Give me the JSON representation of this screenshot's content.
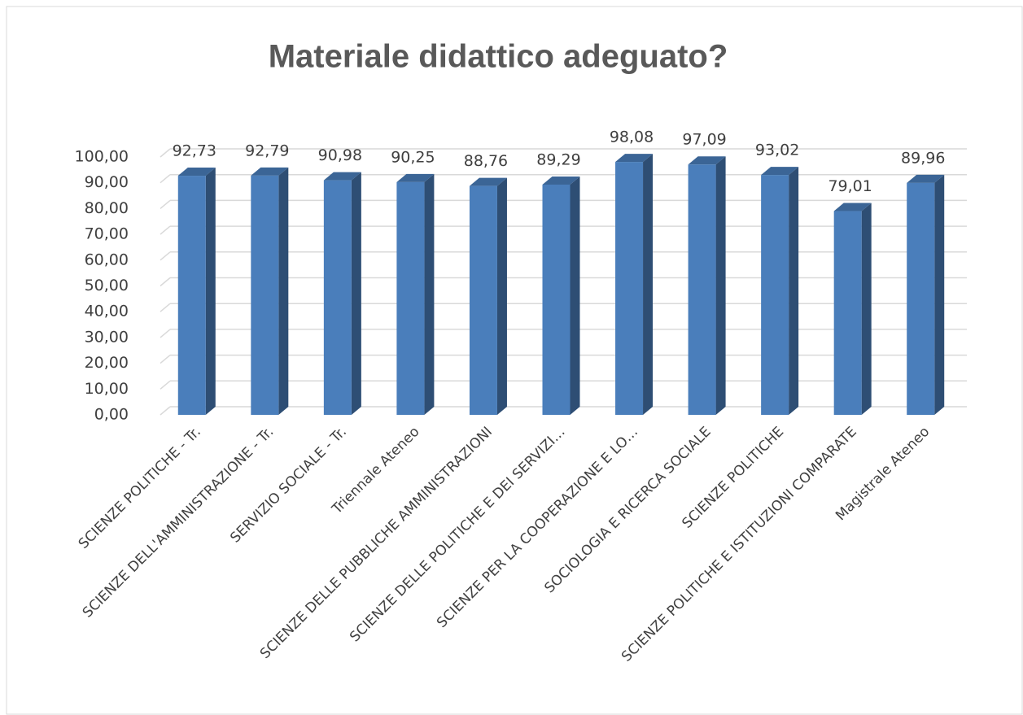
{
  "chart_data": {
    "type": "bar3d",
    "title": "Materiale didattico adeguato?",
    "categories": [
      "SCIENZE POLITICHE - Tr.",
      "SCIENZE DELL'AMMINISTRAZIONE - Tr.",
      "SERVIZIO SOCIALE - Tr.",
      "Triennale Ateneo",
      "SCIENZE DELLE PUBBLICHE AMMINISTRAZIONI",
      "SCIENZE DELLE POLITICHE E DEI SERVIZI…",
      "SCIENZE PER LA COOPERAZIONE E LO…",
      "SOCIOLOGIA E RICERCA SOCIALE",
      "SCIENZE POLITICHE",
      "SCIENZE POLITICHE E ISTITUZIONI COMPARATE",
      "Magistrale Ateneo"
    ],
    "values": [
      92.73,
      92.79,
      90.98,
      90.25,
      88.76,
      89.29,
      98.08,
      97.09,
      93.02,
      79.01,
      89.96
    ],
    "value_labels": [
      "92,73",
      "92,79",
      "90,98",
      "90,25",
      "88,76",
      "89,29",
      "98,08",
      "97,09",
      "93,02",
      "79,01",
      "89,96"
    ],
    "color": "#4a7ebb",
    "ylim": [
      0,
      100
    ],
    "yticks": [
      {
        "value": 0,
        "label": "0,00"
      },
      {
        "value": 10,
        "label": "10,00"
      },
      {
        "value": 20,
        "label": "20,00"
      },
      {
        "value": 30,
        "label": "30,00"
      },
      {
        "value": 40,
        "label": "40,00"
      },
      {
        "value": 50,
        "label": "50,00"
      },
      {
        "value": 60,
        "label": "60,00"
      },
      {
        "value": 70,
        "label": "70,00"
      },
      {
        "value": 80,
        "label": "80,00"
      },
      {
        "value": 90,
        "label": "90,00"
      },
      {
        "value": 100,
        "label": "100,00"
      }
    ],
    "grid": true
  }
}
